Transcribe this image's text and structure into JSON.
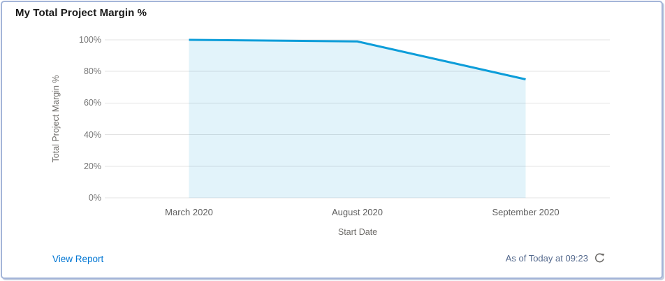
{
  "widget": {
    "title": "My Total Project Margin %",
    "footer": {
      "view_report_label": "View Report",
      "as_of_text": "As of Today at 09:23"
    }
  },
  "colors": {
    "line": "#0d9dd9",
    "area_fill": "#0d9dd9",
    "area_fill_opacity": "0.12",
    "gridline": "#e3e3e3",
    "card_border": "#a4b5d8",
    "link": "#0176d3",
    "as_of": "#54698d",
    "title_text": "#181818",
    "axis_text": "#706e6b"
  },
  "chart_data": {
    "type": "area",
    "title": "My Total Project Margin %",
    "categories": [
      "March 2020",
      "August 2020",
      "September 2020"
    ],
    "values": [
      100,
      99,
      75
    ],
    "xlabel": "Start Date",
    "ylabel": "Total Project Margin %",
    "yticks": [
      "0%",
      "20%",
      "40%",
      "60%",
      "80%",
      "100%"
    ],
    "ylim": [
      0,
      100
    ],
    "grid": true,
    "legend": false
  }
}
